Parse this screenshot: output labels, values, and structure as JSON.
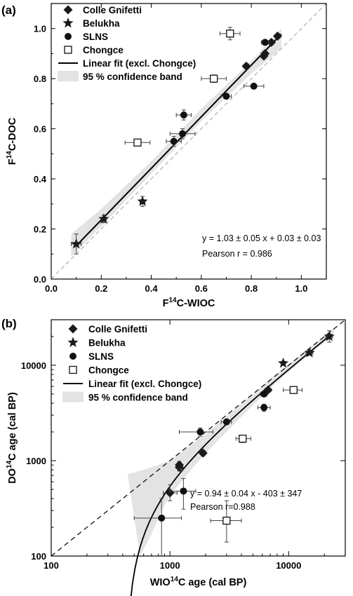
{
  "chart_data": [
    {
      "type": "scatter",
      "panel_label": "(a)",
      "xlabel": {
        "prefix": "F",
        "sup": "14",
        "suffix": "C-WIOC"
      },
      "ylabel": {
        "prefix": "F",
        "sup": "14",
        "suffix": "C-DOC"
      },
      "xlim": [
        0,
        1.1
      ],
      "ylim": [
        0,
        1.1
      ],
      "xticks": [
        "0.0",
        "0.2",
        "0.4",
        "0.6",
        "0.8",
        "1.0"
      ],
      "yticks": [
        "0.0",
        "0.2",
        "0.4",
        "0.6",
        "0.8",
        "1.0"
      ],
      "tick_values": [
        0,
        0.2,
        0.4,
        0.6,
        0.8,
        1.0
      ],
      "minor_tick_values": [
        0.1,
        0.3,
        0.5,
        0.7,
        0.9
      ],
      "legend_placement": "top-left",
      "legend": [
        {
          "label": "Colle Gnifetti",
          "marker": "diamond"
        },
        {
          "label": "Belukha",
          "marker": "star"
        },
        {
          "label": "SLNS",
          "marker": "circle"
        },
        {
          "label": "Chongce",
          "marker": "open-square"
        },
        {
          "label": "Linear fit (excl. Chongce)",
          "marker": "line"
        },
        {
          "label": "95 % confidence band",
          "marker": "band"
        }
      ],
      "series": [
        {
          "name": "Colle Gnifetti",
          "marker": "diamond",
          "points": [
            {
              "x": 0.78,
              "y": 0.85,
              "xerr": 0.01,
              "yerr": 0.01
            },
            {
              "x": 0.85,
              "y": 0.89,
              "xerr": 0.01,
              "yerr": 0.01
            },
            {
              "x": 0.855,
              "y": 0.9,
              "xerr": 0.01,
              "yerr": 0.01
            },
            {
              "x": 0.88,
              "y": 0.945,
              "xerr": 0.01,
              "yerr": 0.01
            },
            {
              "x": 0.905,
              "y": 0.97,
              "xerr": 0.01,
              "yerr": 0.01
            }
          ]
        },
        {
          "name": "Belukha",
          "marker": "star",
          "points": [
            {
              "x": 0.1,
              "y": 0.14,
              "xerr": 0.02,
              "yerr": 0.04
            },
            {
              "x": 0.21,
              "y": 0.24,
              "xerr": 0.01,
              "yerr": 0.015
            },
            {
              "x": 0.365,
              "y": 0.31,
              "xerr": 0.01,
              "yerr": 0.02
            }
          ]
        },
        {
          "name": "SLNS",
          "marker": "circle",
          "points": [
            {
              "x": 0.49,
              "y": 0.55,
              "xerr": 0.03,
              "yerr": 0.02
            },
            {
              "x": 0.525,
              "y": 0.58,
              "xerr": 0.05,
              "yerr": 0.02
            },
            {
              "x": 0.53,
              "y": 0.655,
              "xerr": 0.03,
              "yerr": 0.02
            },
            {
              "x": 0.7,
              "y": 0.73,
              "xerr": 0.02,
              "yerr": 0.01
            },
            {
              "x": 0.81,
              "y": 0.77,
              "xerr": 0.04,
              "yerr": 0.01
            },
            {
              "x": 0.855,
              "y": 0.945,
              "xerr": 0.015,
              "yerr": 0.01
            }
          ]
        },
        {
          "name": "Chongce",
          "marker": "open-square",
          "points": [
            {
              "x": 0.345,
              "y": 0.545,
              "xerr": 0.05,
              "yerr": 0.01
            },
            {
              "x": 0.65,
              "y": 0.8,
              "xerr": 0.05,
              "yerr": 0.015
            },
            {
              "x": 0.715,
              "y": 0.98,
              "xerr": 0.04,
              "yerr": 0.025
            }
          ]
        }
      ],
      "fit": {
        "slope": 1.03,
        "intercept": 0.03,
        "x_range": [
          0.1,
          0.92
        ]
      },
      "band": {
        "upper": [
          [
            0.08,
            0.18
          ],
          [
            0.2,
            0.28
          ],
          [
            0.4,
            0.47
          ],
          [
            0.6,
            0.68
          ],
          [
            0.8,
            0.87
          ],
          [
            0.92,
            1.0
          ]
        ],
        "lower": [
          [
            0.08,
            0.09
          ],
          [
            0.2,
            0.21
          ],
          [
            0.4,
            0.42
          ],
          [
            0.6,
            0.63
          ],
          [
            0.8,
            0.82
          ],
          [
            0.92,
            0.92
          ]
        ]
      },
      "identity_line": true,
      "annotations": [
        "y  = 1.03 ± 0.05  x + 0.03 ± 0.03",
        "Pearson r = 0.986"
      ]
    },
    {
      "type": "scatter",
      "panel_label": "(b)",
      "xlabel": {
        "prefix": "WIO",
        "sup": "14",
        "suffix": "C age (cal BP)"
      },
      "ylabel": {
        "prefix": "DO",
        "sup": "14",
        "suffix": "C age (cal BP)"
      },
      "xscale": "log",
      "yscale": "log",
      "xlim": [
        100,
        30000
      ],
      "ylim": [
        100,
        30000
      ],
      "xticks": [
        "100",
        "1000",
        "10000"
      ],
      "yticks": [
        "100",
        "1000",
        "10000"
      ],
      "tick_values": [
        100,
        1000,
        10000
      ],
      "legend_placement": "top-left",
      "legend": [
        {
          "label": "Colle Gnifetti",
          "marker": "diamond"
        },
        {
          "label": "Belukha",
          "marker": "star"
        },
        {
          "label": "SLNS",
          "marker": "circle"
        },
        {
          "label": "Chongce",
          "marker": "open-square"
        },
        {
          "label": "Linear fit (excl. Chongce)",
          "marker": "line"
        },
        {
          "label": "95 % confidence band",
          "marker": "band"
        }
      ],
      "series": [
        {
          "name": "Colle Gnifetti",
          "marker": "diamond",
          "points": [
            {
              "x": 1000,
              "y": 460,
              "xlo": 880,
              "xhi": 1150,
              "ylo": 380,
              "yhi": 560
            },
            {
              "x": 1200,
              "y": 850,
              "xlo": 1150,
              "xhi": 1250,
              "ylo": 780,
              "yhi": 920
            },
            {
              "x": 1200,
              "y": 900,
              "xlo": 1150,
              "xhi": 1250,
              "ylo": 820,
              "yhi": 980
            },
            {
              "x": 1900,
              "y": 1200,
              "xlo": 1800,
              "xhi": 2000,
              "ylo": 1120,
              "yhi": 1290
            },
            {
              "x": 6700,
              "y": 5500,
              "xlo": 6300,
              "xhi": 7100,
              "ylo": 5200,
              "yhi": 5800
            }
          ]
        },
        {
          "name": "Belukha",
          "marker": "star",
          "points": [
            {
              "x": 9000,
              "y": 10500,
              "xlo": 8700,
              "xhi": 9300,
              "ylo": 10000,
              "yhi": 11000
            },
            {
              "x": 15000,
              "y": 13500,
              "xlo": 14000,
              "xhi": 16000,
              "ylo": 12800,
              "yhi": 14200
            },
            {
              "x": 22000,
              "y": 20000,
              "xlo": 20500,
              "xhi": 23500,
              "ylo": 17500,
              "yhi": 23000
            }
          ]
        },
        {
          "name": "SLNS",
          "marker": "circle",
          "points": [
            {
              "x": 850,
              "y": 250,
              "xlo": 500,
              "xhi": 1250,
              "ylo": 100,
              "yhi": 400
            },
            {
              "x": 1300,
              "y": 480,
              "xlo": 1000,
              "xhi": 1650,
              "ylo": 310,
              "yhi": 650
            },
            {
              "x": 1800,
              "y": 2000,
              "xlo": 1200,
              "xhi": 2300,
              "ylo": 1800,
              "yhi": 2200
            },
            {
              "x": 3000,
              "y": 2550,
              "xlo": 2700,
              "xhi": 3300,
              "ylo": 2400,
              "yhi": 2700
            },
            {
              "x": 6200,
              "y": 3600,
              "xlo": 5500,
              "xhi": 7000,
              "ylo": 3300,
              "yhi": 3900
            },
            {
              "x": 6200,
              "y": 5000,
              "xlo": 5800,
              "xhi": 6600,
              "ylo": 4700,
              "yhi": 5300
            }
          ]
        },
        {
          "name": "Chongce",
          "marker": "open-square",
          "points": [
            {
              "x": 3000,
              "y": 235,
              "xlo": 2200,
              "xhi": 4000,
              "ylo": 140,
              "yhi": 380
            },
            {
              "x": 4100,
              "y": 1700,
              "xlo": 3600,
              "xhi": 4800,
              "ylo": 1550,
              "yhi": 1850
            },
            {
              "x": 11000,
              "y": 5500,
              "xlo": 9000,
              "xhi": 13000,
              "ylo": 5200,
              "yhi": 5800
            }
          ]
        }
      ],
      "fit": {
        "slope": 0.94,
        "intercept": -403,
        "x_range": [
          460,
          23000
        ]
      },
      "band": {
        "upper": [
          [
            440,
            720
          ],
          [
            600,
            800
          ],
          [
            800,
            900
          ],
          [
            1000,
            1000
          ],
          [
            2000,
            1900
          ],
          [
            4000,
            3900
          ],
          [
            8000,
            8200
          ],
          [
            16000,
            16500
          ],
          [
            24000,
            24500
          ]
        ],
        "lower": [
          [
            560,
            100
          ],
          [
            700,
            170
          ],
          [
            850,
            300
          ],
          [
            1000,
            430
          ],
          [
            1500,
            800
          ],
          [
            2000,
            1200
          ],
          [
            4000,
            2900
          ],
          [
            8000,
            6700
          ],
          [
            16000,
            14000
          ],
          [
            24000,
            20500
          ]
        ]
      },
      "identity_line": true,
      "annotations": [
        "y  = 0.94 ± 0.04  x - 403 ± 347",
        "Pearson r=0.988"
      ]
    }
  ]
}
